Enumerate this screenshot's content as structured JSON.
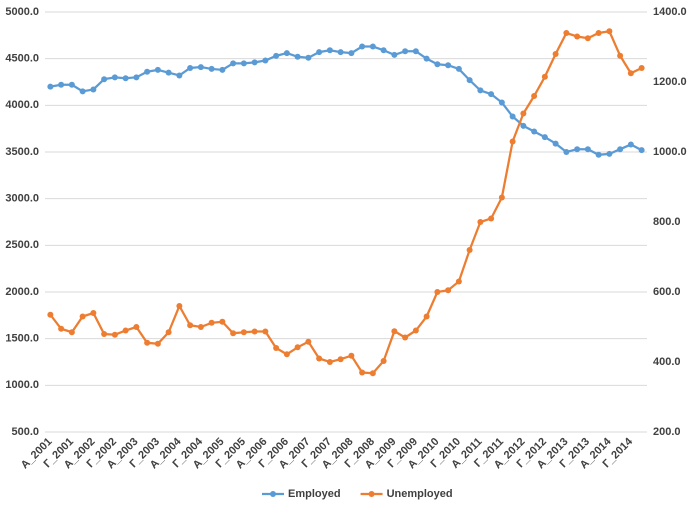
{
  "chart_data": {
    "type": "line",
    "categories": [
      "A_2001",
      null,
      "Г_2001",
      null,
      "A_2002",
      null,
      "Г_2002",
      null,
      "A_2003",
      null,
      "Г_2003",
      null,
      "A_2004",
      null,
      "Г_2004",
      null,
      "A_2005",
      null,
      "Г_2005",
      null,
      "A_2006",
      null,
      "Г_2006",
      null,
      "A_2007",
      null,
      "Г_2007",
      null,
      "A_2008",
      null,
      "Г_2008",
      null,
      "A_2009",
      null,
      "Г_2009",
      null,
      "A_2010",
      null,
      "Г_2010",
      null,
      "A_2011",
      null,
      "Г_2011",
      null,
      "A_2012",
      null,
      "Г_2012",
      null,
      "A_2013",
      null,
      "Г_2013",
      null,
      "A_2014",
      null,
      "Г_2014",
      null
    ],
    "series": [
      {
        "name": "Employed",
        "color": "#5b9bd5",
        "values": [
          4200,
          4220,
          4220,
          4150,
          4170,
          4280,
          4300,
          4290,
          4300,
          4360,
          4380,
          4350,
          4320,
          4400,
          4410,
          4390,
          4380,
          4450,
          4450,
          4460,
          4480,
          4530,
          4560,
          4520,
          4510,
          4570,
          4590,
          4570,
          4560,
          4630,
          4630,
          4590,
          4540,
          4580,
          4580,
          4500,
          4440,
          4430,
          4390,
          4270,
          4160,
          4120,
          4030,
          3880,
          3780,
          3720,
          3660,
          3590,
          3500,
          3530,
          3530,
          3470,
          3480,
          3530,
          3580,
          3520
        ]
      },
      {
        "name": "Unemployed",
        "color": "#ed7d31",
        "axis": "y2",
        "values": [
          535,
          495,
          485,
          530,
          540,
          480,
          478,
          490,
          500,
          455,
          452,
          485,
          560,
          505,
          500,
          512,
          515,
          482,
          485,
          487,
          487,
          440,
          422,
          442,
          458,
          410,
          400,
          408,
          418,
          370,
          368,
          403,
          488,
          470,
          490,
          530,
          600,
          605,
          630,
          720,
          800,
          810,
          870,
          1030,
          1110,
          1160,
          1215,
          1280,
          1340,
          1330,
          1325,
          1340,
          1345,
          1275,
          1225,
          1240
        ]
      }
    ],
    "ylim": [
      500,
      5000
    ],
    "yticks": [
      {
        "value": 500,
        "label": "500.0"
      },
      {
        "value": 1000,
        "label": "1000.0"
      },
      {
        "value": 1500,
        "label": "1500.0"
      },
      {
        "value": 2000,
        "label": "2000.0"
      },
      {
        "value": 2500,
        "label": "2500.0"
      },
      {
        "value": 3000,
        "label": "3000.0"
      },
      {
        "value": 3500,
        "label": "3500.0"
      },
      {
        "value": 4000,
        "label": "4000.0"
      },
      {
        "value": 4500,
        "label": "4500.0"
      },
      {
        "value": 5000,
        "label": "5000.0"
      }
    ],
    "y2lim": [
      200,
      1400
    ],
    "y2ticks": [
      {
        "value": 200,
        "label": "200.0"
      },
      {
        "value": 400,
        "label": "400.0"
      },
      {
        "value": 600,
        "label": "600.0"
      },
      {
        "value": 800,
        "label": "800.0"
      },
      {
        "value": 1000,
        "label": "1000.0"
      },
      {
        "value": 1200,
        "label": "1200.0"
      },
      {
        "value": 1400,
        "label": "1400.0"
      }
    ],
    "grid": true,
    "legend": "bottom"
  }
}
